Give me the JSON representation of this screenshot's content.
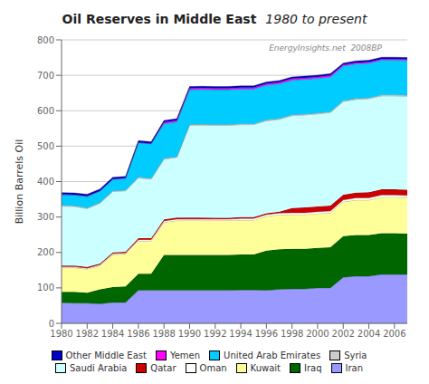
{
  "chart_data": {
    "type": "area",
    "stacked": true,
    "title": "Oil Reserves in Middle East",
    "subtitle": "1980 to present",
    "ylabel": "Billion Barrels Oil",
    "annotation": "EnergyInsights.net  2008BP",
    "x": [
      1980,
      1981,
      1982,
      1983,
      1984,
      1985,
      1986,
      1987,
      1988,
      1989,
      1990,
      1991,
      1992,
      1993,
      1994,
      1995,
      1996,
      1997,
      1998,
      1999,
      2000,
      2001,
      2002,
      2003,
      2004,
      2005,
      2006,
      2007
    ],
    "series": [
      {
        "name": "Iran",
        "color": "#9999ff",
        "values": [
          58,
          57,
          57,
          55,
          59,
          59,
          93,
          93,
          93,
          93,
          93,
          93,
          93,
          93,
          94,
          94,
          93,
          96,
          97,
          97,
          100,
          100,
          130,
          133,
          133,
          138,
          138,
          138
        ]
      },
      {
        "name": "Iraq",
        "color": "#006600",
        "values": [
          31,
          32,
          29,
          41,
          43,
          45,
          47,
          47,
          100,
          100,
          100,
          100,
          100,
          100,
          100,
          100,
          112,
          113,
          113,
          113,
          113,
          115,
          116,
          116,
          116,
          116,
          116,
          115
        ]
      },
      {
        "name": "Kuwait",
        "color": "#ffff99",
        "values": [
          68,
          68,
          67,
          67,
          92,
          92,
          92,
          92,
          92,
          97,
          97,
          97,
          97,
          97,
          97,
          97,
          97,
          97,
          97,
          97,
          97,
          97,
          97,
          99,
          99,
          102,
          102,
          102
        ]
      },
      {
        "name": "Oman",
        "color": "#ffffff",
        "values": [
          2.5,
          2.5,
          2.5,
          2.5,
          2.5,
          2.5,
          4,
          4,
          4,
          4,
          4,
          4,
          4,
          4,
          5,
          5,
          5,
          5,
          5,
          5,
          5,
          5,
          5,
          6,
          6,
          6,
          6,
          6
        ]
      },
      {
        "name": "Qatar",
        "color": "#cc0000",
        "values": [
          3.5,
          3.5,
          3.5,
          3.5,
          3.5,
          3.5,
          4.5,
          4.5,
          4.5,
          4.5,
          4.5,
          4.5,
          3.7,
          3.7,
          3.7,
          3.7,
          3.7,
          3.7,
          13,
          15,
          15,
          15,
          15,
          15,
          16,
          16,
          16,
          16
        ]
      },
      {
        "name": "Saudi Arabia",
        "color": "#ccffff",
        "values": [
          168,
          167,
          165,
          170,
          172,
          172,
          170,
          167,
          170,
          170,
          261,
          261,
          261,
          261,
          261,
          261,
          261,
          261,
          261,
          261,
          261,
          263,
          263,
          263,
          264,
          264,
          264,
          264
        ]
      },
      {
        "name": "Syria",
        "color": "#cccccc",
        "values": [
          2,
          2,
          2,
          2,
          2,
          2,
          2,
          2,
          2,
          2,
          2,
          2.5,
          2.5,
          2.5,
          2.5,
          2.5,
          2.5,
          2.5,
          2.5,
          2.5,
          2.5,
          2.5,
          2.5,
          2.5,
          2.5,
          3,
          3,
          3
        ]
      },
      {
        "name": "United Arab Emirates",
        "color": "#00ccff",
        "values": [
          30,
          30,
          32,
          32,
          32,
          33,
          97,
          97,
          98,
          98,
          98,
          98,
          98,
          98,
          98,
          98,
          98,
          98,
          98,
          98,
          98,
          98,
          98,
          98,
          98,
          98,
          98,
          98
        ]
      },
      {
        "name": "Yemen",
        "color": "#ff00ff",
        "values": [
          1,
          1,
          1,
          1,
          1,
          1,
          1,
          1,
          4,
          4,
          4,
          4,
          4,
          4,
          4,
          4,
          4,
          4,
          4,
          4,
          4,
          4,
          3,
          3,
          3,
          3,
          3,
          3
        ]
      },
      {
        "name": "Other Middle East",
        "color": "#0000cc",
        "values": [
          5,
          5,
          5,
          5,
          5,
          5,
          5,
          5,
          5,
          5,
          5,
          5,
          5,
          5,
          5,
          5,
          5,
          5,
          5,
          5,
          5,
          5,
          5,
          5,
          5,
          5,
          5,
          5
        ]
      }
    ],
    "xlim": [
      1980,
      2007
    ],
    "xticks": [
      1980,
      1982,
      1984,
      1986,
      1988,
      1990,
      1992,
      1994,
      1996,
      1998,
      2000,
      2002,
      2004,
      2006
    ],
    "ylim": [
      0,
      800
    ],
    "yticks": [
      0,
      100,
      200,
      300,
      400,
      500,
      600,
      700,
      800
    ],
    "grid": true,
    "legend": "bottom"
  }
}
